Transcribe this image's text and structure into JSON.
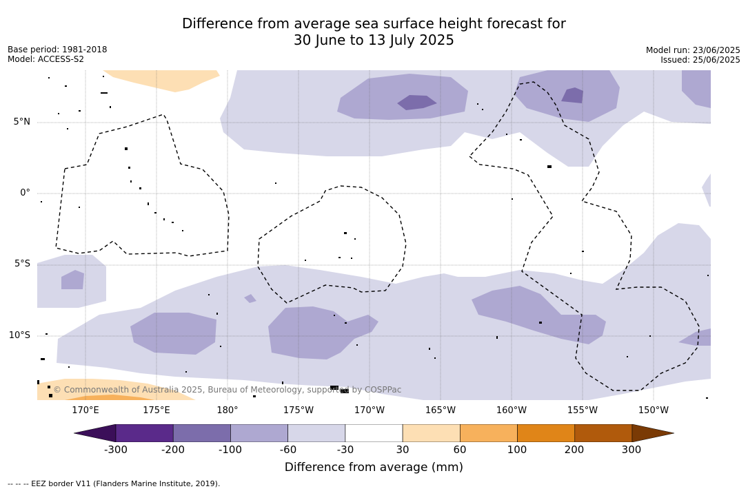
{
  "title": {
    "line1": "Difference from average sea surface height forecast for",
    "line2": "30 June to 13 July 2025"
  },
  "meta_left": {
    "base_period": "Base period: 1981-2018",
    "model": "Model: ACCESS-S2"
  },
  "meta_right": {
    "model_run": "Model run: 23/06/2025",
    "issued": "Issued: 25/06/2025"
  },
  "map": {
    "latitude_labels": [
      "5°N",
      "0°",
      "5°S",
      "10°S"
    ],
    "longitude_labels": [
      "170°E",
      "175°E",
      "180°",
      "175°W",
      "170°W",
      "165°W",
      "160°W",
      "155°W",
      "150°W"
    ],
    "copyright": "© Commonwealth of Australia 2025, Bureau of Meteorology, supported by COSPPac"
  },
  "colorbar": {
    "label": "Difference from average (mm)",
    "tick_labels": [
      "-300",
      "-200",
      "-100",
      "-60",
      "-30",
      "30",
      "60",
      "100",
      "200",
      "300"
    ],
    "colors": [
      "#3b0f59",
      "#5a2a8a",
      "#7c6dab",
      "#aea8d1",
      "#d7d7e9",
      "#ffffff",
      "#fddfb4",
      "#f7b15c",
      "#e08518",
      "#b05a0c",
      "#7a3a05"
    ]
  },
  "footnote": "--  --  -- EEZ border V11 (Flanders Marine Institute, 2019)."
}
